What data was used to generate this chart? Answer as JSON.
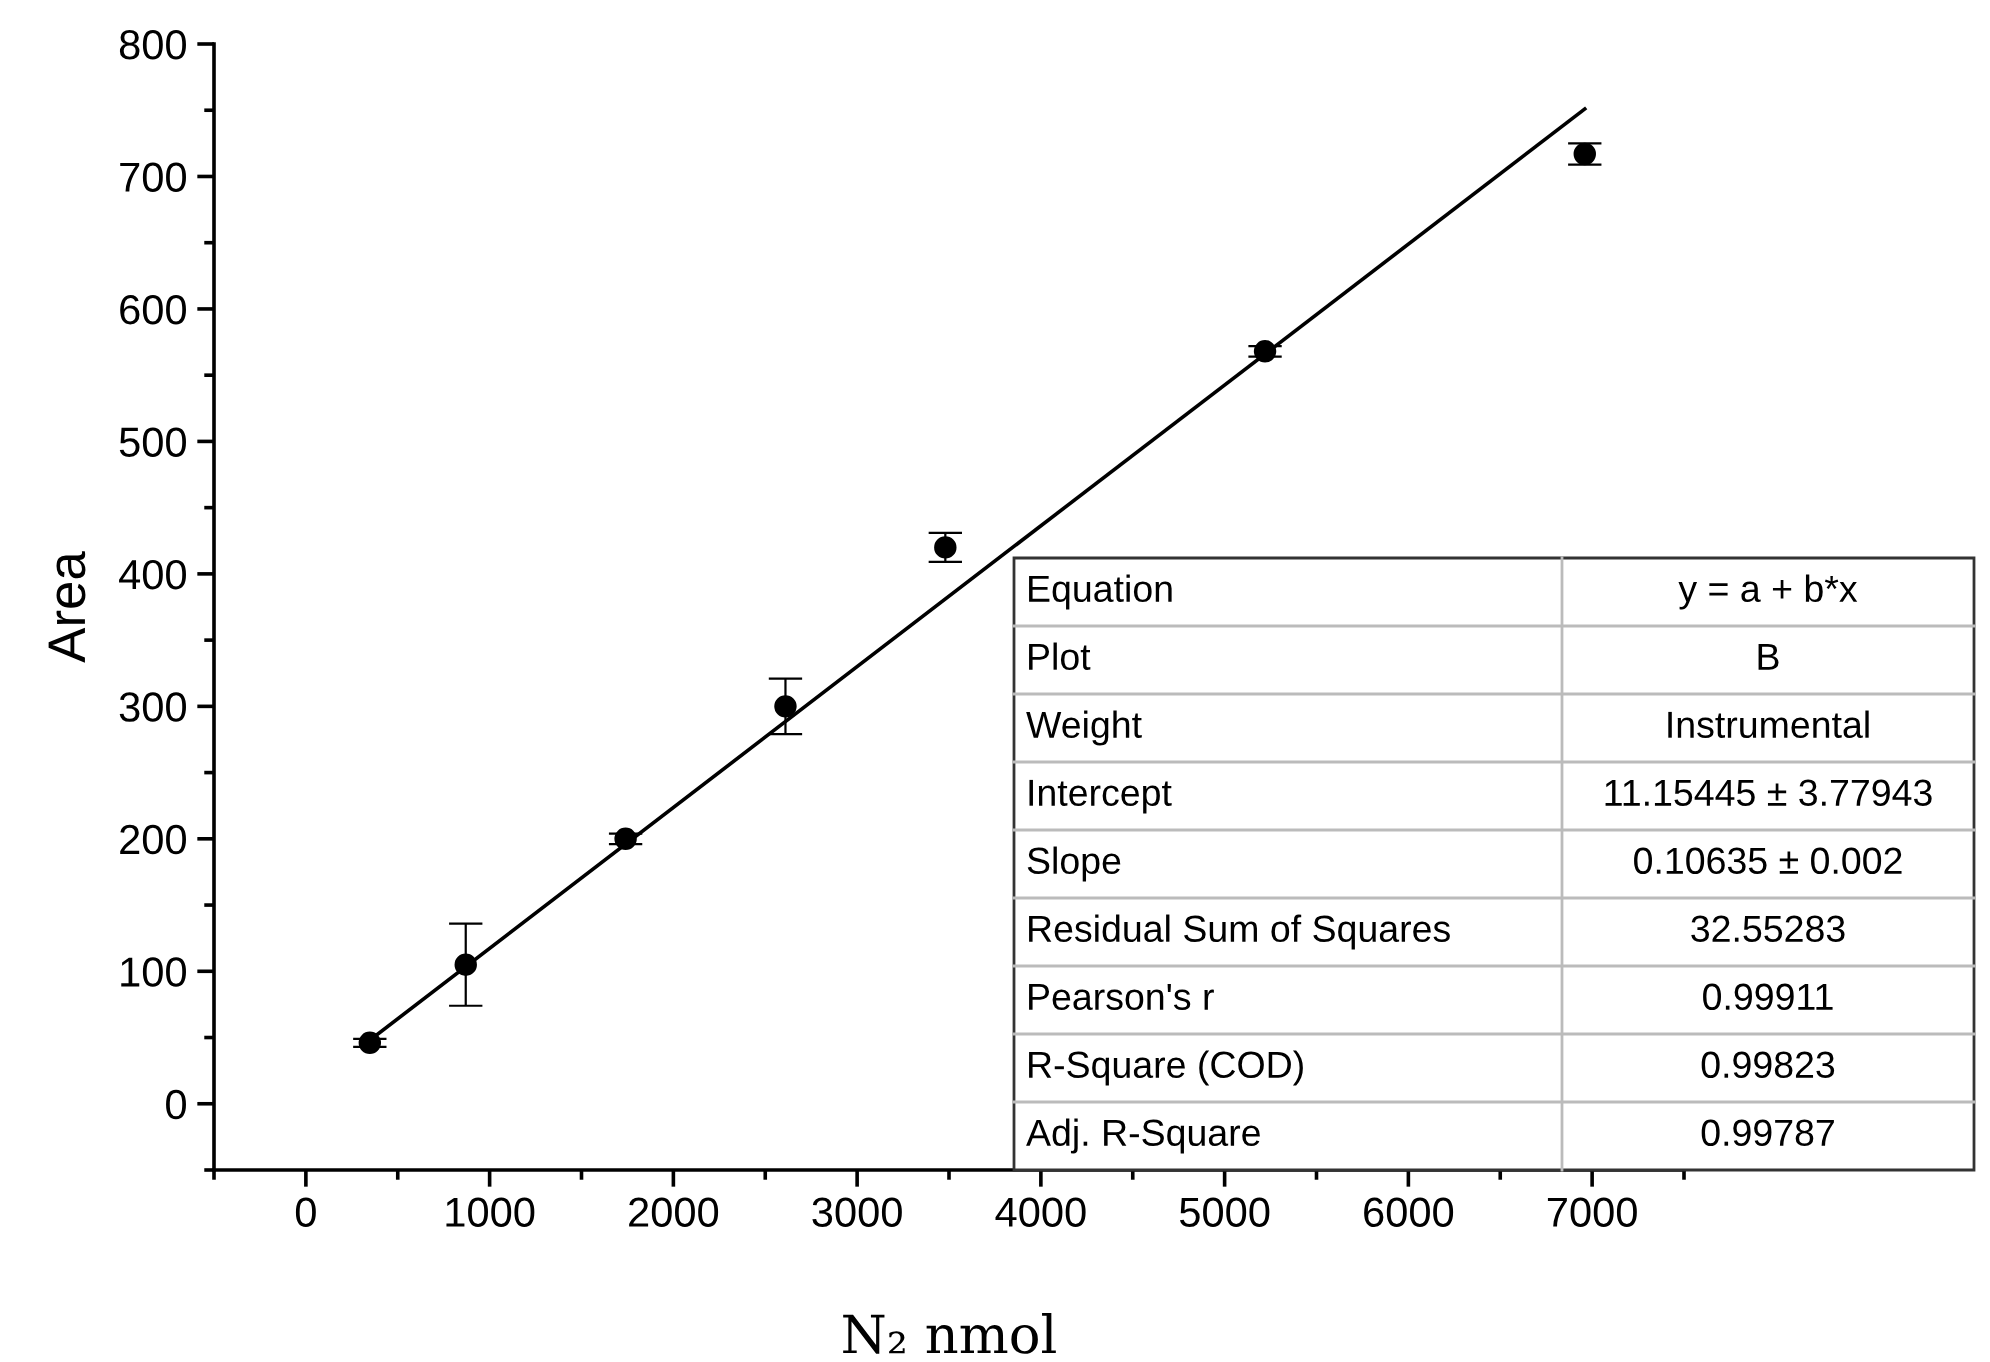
{
  "chart_data": {
    "type": "scatter",
    "xlabel": "N₂ nmol",
    "ylabel": "Area",
    "x": [
      348,
      870,
      1740,
      2610,
      3480,
      5220,
      6960
    ],
    "series": [
      {
        "color": "#000000",
        "marker": "circle",
        "values": [
          46,
          105,
          200,
          300,
          420,
          568,
          717
        ],
        "errors": [
          3,
          31,
          4,
          21,
          11,
          4,
          8
        ]
      },
      {
        "type": "line",
        "color": "#000000",
        "x": [
          348,
          6960
        ],
        "values": [
          48,
          751
        ],
        "line_style": "solid",
        "marker": "none"
      }
    ],
    "xlim": [
      -500,
      7500
    ],
    "xticks": [
      0,
      1000,
      2000,
      3000,
      4000,
      5000,
      6000,
      7000
    ],
    "ylim": [
      -50,
      800
    ],
    "yticks": [
      0,
      100,
      200,
      300,
      400,
      500,
      600,
      700,
      800
    ],
    "grid": false,
    "annotations": [
      "Equation",
      "y = a + b*x",
      "Plot",
      "B",
      "Weight",
      "Instrumental",
      "Intercept",
      "11.15445 ± 3.77943",
      "Slope",
      "0.10635 ± 0.002",
      "Residual Sum of Squares",
      "32.55283",
      "Pearson's r",
      "0.99911",
      "R-Square (COD)",
      "0.99823",
      "Adj. R-Square",
      "0.99787"
    ]
  }
}
